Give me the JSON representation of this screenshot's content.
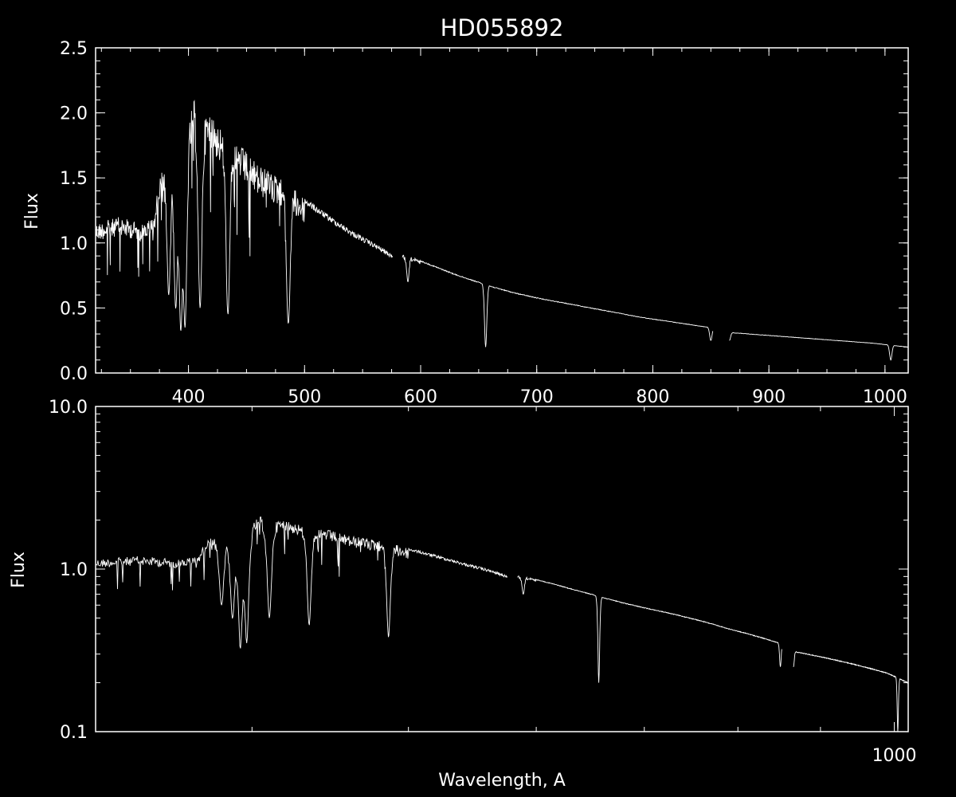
{
  "colors": {
    "background": "#000000",
    "foreground": "#ffffff"
  },
  "chart_data": [
    {
      "type": "line",
      "title": "HD055892",
      "xlabel": "",
      "ylabel": "Flux",
      "xlim": [
        320,
        1020
      ],
      "ylim": [
        0.0,
        2.5
      ],
      "xscale": "linear",
      "yscale": "linear",
      "x_ticks": [
        "400",
        "500",
        "600",
        "700",
        "800",
        "900",
        "1000"
      ],
      "y_ticks": [
        "0.0",
        "0.5",
        "1.0",
        "1.5",
        "2.0",
        "2.5"
      ],
      "grid": false,
      "series": [
        {
          "name": "",
          "x": [
            320,
            340,
            360,
            370,
            375,
            380,
            390,
            400,
            405,
            410,
            420,
            430,
            440,
            450,
            460,
            470,
            480,
            490,
            500,
            520,
            540,
            560,
            575,
            590,
            610,
            630,
            650,
            660,
            680,
            700,
            730,
            760,
            790,
            820,
            850,
            870,
            900,
            930,
            960,
            990,
            1020
          ],
          "values": [
            1.15,
            1.2,
            1.15,
            1.2,
            1.5,
            1.65,
            1.85,
            1.95,
            2.1,
            2.0,
            2.0,
            1.85,
            1.8,
            1.7,
            1.6,
            1.55,
            1.5,
            1.42,
            1.35,
            1.22,
            1.1,
            1.0,
            0.92,
            0.9,
            0.83,
            0.76,
            0.7,
            0.67,
            0.62,
            0.58,
            0.53,
            0.48,
            0.43,
            0.39,
            0.35,
            0.31,
            0.29,
            0.27,
            0.25,
            0.23,
            0.2
          ]
        }
      ],
      "absorption_lines": [
        {
          "x": 383,
          "depth_to": 0.6
        },
        {
          "x": 389,
          "depth_to": 0.5
        },
        {
          "x": 393.4,
          "depth_to": 0.32
        },
        {
          "x": 397,
          "depth_to": 0.35
        },
        {
          "x": 410,
          "depth_to": 0.5
        },
        {
          "x": 434,
          "depth_to": 0.45
        },
        {
          "x": 486,
          "depth_to": 0.38
        },
        {
          "x": 589,
          "depth_to": 0.7
        },
        {
          "x": 656,
          "depth_to": 0.2
        },
        {
          "x": 850,
          "depth_to": 0.25
        },
        {
          "x": 866,
          "depth_to": 0.25
        },
        {
          "x": 1005,
          "depth_to": 0.1
        }
      ]
    },
    {
      "type": "line",
      "title": "",
      "xlabel": "Wavelength, A",
      "ylabel": "Flux",
      "xlim": [
        320,
        1020
      ],
      "ylim": [
        0.1,
        10.0
      ],
      "xscale": "log",
      "yscale": "log",
      "x_ticks": [
        "1000"
      ],
      "y_ticks": [
        "0.1",
        "1.0",
        "10.0"
      ],
      "grid": false,
      "series": [
        {
          "name": "",
          "x": [
            320,
            340,
            360,
            370,
            375,
            380,
            390,
            400,
            405,
            410,
            420,
            430,
            440,
            450,
            460,
            470,
            480,
            490,
            500,
            520,
            540,
            560,
            575,
            590,
            610,
            630,
            650,
            660,
            680,
            700,
            730,
            760,
            790,
            820,
            850,
            870,
            900,
            930,
            960,
            990,
            1020
          ],
          "values": [
            1.15,
            1.2,
            1.15,
            1.2,
            1.5,
            1.65,
            1.85,
            1.95,
            2.1,
            2.0,
            2.0,
            1.85,
            1.8,
            1.7,
            1.6,
            1.55,
            1.5,
            1.42,
            1.35,
            1.22,
            1.1,
            1.0,
            0.92,
            0.9,
            0.83,
            0.76,
            0.7,
            0.67,
            0.62,
            0.58,
            0.53,
            0.48,
            0.43,
            0.39,
            0.35,
            0.31,
            0.29,
            0.27,
            0.25,
            0.23,
            0.2
          ]
        }
      ]
    }
  ]
}
